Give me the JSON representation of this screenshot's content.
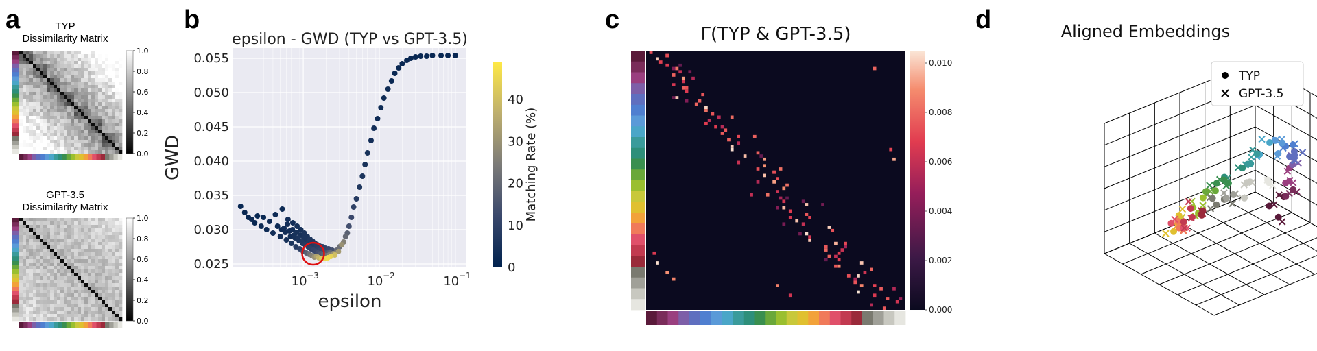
{
  "panels": {
    "a": {
      "letter": "a",
      "top": {
        "title_line1": "TYP",
        "title_line2": "Dissimilarity Matrix"
      },
      "bottom": {
        "title_line1": "GPT-3.5",
        "title_line2": "Dissimilarity Matrix"
      },
      "colorbar_ticks": [
        "1.0",
        "0.8",
        "0.6",
        "0.4",
        "0.2",
        "0.0"
      ]
    },
    "b": {
      "letter": "b"
    },
    "c": {
      "letter": "c"
    },
    "d": {
      "letter": "d"
    }
  },
  "category_colors": [
    "#5a1a3a",
    "#7a2c5a",
    "#9a3f7f",
    "#7d5fa8",
    "#5f6fbf",
    "#4f7fd0",
    "#5a9ad8",
    "#4aa6c8",
    "#3a9b9b",
    "#2e8f7a",
    "#3a8f4f",
    "#6aa83a",
    "#9abf2f",
    "#c8c83a",
    "#e0c030",
    "#f2a23a",
    "#f07a5a",
    "#e0506a",
    "#c23a50",
    "#9a2a3a",
    "#7a7a70",
    "#a0a098",
    "#c8c8c0",
    "#e6e6e0"
  ],
  "chart_data": [
    {
      "type": "heatmap",
      "panel": "a-top",
      "title": "TYP Dissimilarity Matrix",
      "colorbar_range": [
        0.0,
        1.0
      ],
      "colormap": "gray"
    },
    {
      "type": "heatmap",
      "panel": "a-bottom",
      "title": "GPT-3.5 Dissimilarity Matrix",
      "colorbar_range": [
        0.0,
        1.0
      ],
      "colormap": "gray"
    },
    {
      "type": "scatter",
      "panel": "b",
      "title": "epsilon - GWD (TYP vs GPT-3.5)",
      "xlabel": "epsilon",
      "ylabel": "GWD",
      "xscale": "log",
      "xlim": [
        0.00012,
        0.14
      ],
      "ylim": [
        0.0245,
        0.0565
      ],
      "xticks": [
        0.001,
        0.01,
        0.1
      ],
      "xtick_labels": [
        "10",
        "10",
        "10"
      ],
      "xtick_exponents": [
        "−3",
        "−2",
        "−1"
      ],
      "yticks": [
        0.025,
        0.03,
        0.035,
        0.04,
        0.045,
        0.05,
        0.055
      ],
      "ytick_labels": [
        "0.025",
        "0.030",
        "0.035",
        "0.040",
        "0.045",
        "0.050",
        "0.055"
      ],
      "colorbar_label": "Matching Rate (%)",
      "colorbar_range": [
        0,
        49
      ],
      "colorbar_ticks": [
        0,
        10,
        20,
        30,
        40
      ],
      "colorbar_tick_labels": [
        "0",
        "10",
        "20",
        "30",
        "40"
      ],
      "grid": true,
      "highlight": {
        "x": 0.00135,
        "y": 0.0265,
        "color": "#e01010"
      },
      "points": [
        [
          0.00015,
          0.0334,
          2
        ],
        [
          0.00017,
          0.0325,
          2
        ],
        [
          0.00019,
          0.0318,
          2
        ],
        [
          0.00021,
          0.0315,
          3
        ],
        [
          0.00023,
          0.031,
          2
        ],
        [
          0.00025,
          0.032,
          2
        ],
        [
          0.00028,
          0.0305,
          3
        ],
        [
          0.0003,
          0.0318,
          2
        ],
        [
          0.00033,
          0.03,
          3
        ],
        [
          0.00036,
          0.0312,
          3
        ],
        [
          0.0004,
          0.0295,
          4
        ],
        [
          0.00043,
          0.0322,
          3
        ],
        [
          0.00046,
          0.0305,
          3
        ],
        [
          0.0005,
          0.029,
          4
        ],
        [
          0.00053,
          0.033,
          3
        ],
        [
          0.00056,
          0.0302,
          4
        ],
        [
          0.0006,
          0.0285,
          5
        ],
        [
          0.00063,
          0.0315,
          4
        ],
        [
          0.00066,
          0.0298,
          4
        ],
        [
          0.0007,
          0.028,
          6
        ],
        [
          0.00073,
          0.031,
          4
        ],
        [
          0.00076,
          0.0292,
          5
        ],
        [
          0.0008,
          0.0275,
          8
        ],
        [
          0.00083,
          0.0305,
          5
        ],
        [
          0.00086,
          0.0288,
          6
        ],
        [
          0.0009,
          0.0272,
          10
        ],
        [
          0.00093,
          0.03,
          5
        ],
        [
          0.00096,
          0.0282,
          7
        ],
        [
          0.001,
          0.0268,
          14
        ],
        [
          0.00103,
          0.0295,
          6
        ],
        [
          0.00106,
          0.0278,
          8
        ],
        [
          0.0011,
          0.0266,
          18
        ],
        [
          0.00113,
          0.029,
          6
        ],
        [
          0.00116,
          0.0275,
          9
        ],
        [
          0.0012,
          0.0264,
          22
        ],
        [
          0.00123,
          0.0286,
          7
        ],
        [
          0.00126,
          0.0272,
          10
        ],
        [
          0.0013,
          0.0262,
          26
        ],
        [
          0.00133,
          0.0283,
          7
        ],
        [
          0.00136,
          0.027,
          11
        ],
        [
          0.0014,
          0.026,
          30
        ],
        [
          0.00143,
          0.028,
          8
        ],
        [
          0.00146,
          0.0268,
          12
        ],
        [
          0.0015,
          0.0261,
          34
        ],
        [
          0.00153,
          0.0278,
          9
        ],
        [
          0.00156,
          0.0266,
          14
        ],
        [
          0.0016,
          0.0259,
          38
        ],
        [
          0.00165,
          0.0276,
          9
        ],
        [
          0.0017,
          0.0265,
          16
        ],
        [
          0.00175,
          0.0258,
          42
        ],
        [
          0.0018,
          0.0275,
          10
        ],
        [
          0.00185,
          0.0264,
          18
        ],
        [
          0.0019,
          0.0258,
          45
        ],
        [
          0.00195,
          0.0273,
          11
        ],
        [
          0.002,
          0.0262,
          22
        ],
        [
          0.0021,
          0.0259,
          46
        ],
        [
          0.00215,
          0.0272,
          12
        ],
        [
          0.0022,
          0.0263,
          26
        ],
        [
          0.0023,
          0.0261,
          44
        ],
        [
          0.0024,
          0.027,
          14
        ],
        [
          0.0025,
          0.0265,
          30
        ],
        [
          0.0026,
          0.0263,
          40
        ],
        [
          0.00275,
          0.027,
          20
        ],
        [
          0.0029,
          0.0268,
          32
        ],
        [
          0.003,
          0.0275,
          22
        ],
        [
          0.0032,
          0.0278,
          30
        ],
        [
          0.0034,
          0.0282,
          26
        ],
        [
          0.0036,
          0.029,
          20
        ],
        [
          0.0038,
          0.0295,
          18
        ],
        [
          0.004,
          0.0305,
          14
        ],
        [
          0.0043,
          0.0318,
          12
        ],
        [
          0.0046,
          0.0333,
          10
        ],
        [
          0.005,
          0.0345,
          8
        ],
        [
          0.0055,
          0.0362,
          7
        ],
        [
          0.006,
          0.0378,
          6
        ],
        [
          0.0065,
          0.0395,
          5
        ],
        [
          0.007,
          0.0412,
          5
        ],
        [
          0.0078,
          0.043,
          4
        ],
        [
          0.0085,
          0.0448,
          4
        ],
        [
          0.0095,
          0.0462,
          3
        ],
        [
          0.0105,
          0.0478,
          3
        ],
        [
          0.0115,
          0.0492,
          3
        ],
        [
          0.013,
          0.0505,
          3
        ],
        [
          0.0145,
          0.0517,
          2
        ],
        [
          0.016,
          0.0528,
          2
        ],
        [
          0.018,
          0.0536,
          2
        ],
        [
          0.02,
          0.0542,
          2
        ],
        [
          0.023,
          0.0547,
          2
        ],
        [
          0.026,
          0.055,
          2
        ],
        [
          0.03,
          0.0552,
          2
        ],
        [
          0.035,
          0.0553,
          2
        ],
        [
          0.042,
          0.0553,
          2
        ],
        [
          0.05,
          0.0554,
          2
        ],
        [
          0.065,
          0.0554,
          2
        ],
        [
          0.08,
          0.0554,
          2
        ],
        [
          0.1,
          0.0554,
          2
        ],
        [
          0.00052,
          0.03,
          3
        ],
        [
          0.00058,
          0.0296,
          4
        ],
        [
          0.00068,
          0.029,
          4
        ],
        [
          0.00078,
          0.0288,
          5
        ],
        [
          0.00088,
          0.0284,
          6
        ],
        [
          0.00098,
          0.028,
          6
        ],
        [
          0.00108,
          0.0284,
          6
        ],
        [
          0.00118,
          0.0282,
          7
        ],
        [
          0.00128,
          0.028,
          7
        ],
        [
          0.00138,
          0.0276,
          8
        ],
        [
          0.00148,
          0.0274,
          9
        ],
        [
          0.00158,
          0.0272,
          10
        ],
        [
          0.00168,
          0.027,
          11
        ],
        [
          0.00178,
          0.027,
          12
        ],
        [
          0.00188,
          0.0268,
          13
        ],
        [
          0.00198,
          0.0267,
          14
        ],
        [
          0.00208,
          0.0266,
          16
        ],
        [
          0.00218,
          0.0266,
          18
        ],
        [
          0.00228,
          0.0266,
          20
        ],
        [
          0.00062,
          0.0308,
          4
        ],
        [
          0.00072,
          0.03,
          4
        ],
        [
          0.00082,
          0.0296,
          5
        ],
        [
          0.00092,
          0.0292,
          5
        ],
        [
          0.00102,
          0.0288,
          6
        ],
        [
          0.00112,
          0.0286,
          6
        ],
        [
          0.00122,
          0.0284,
          7
        ],
        [
          0.00132,
          0.0282,
          7
        ],
        [
          0.00142,
          0.0279,
          8
        ],
        [
          0.00152,
          0.0277,
          9
        ]
      ]
    },
    {
      "type": "heatmap",
      "panel": "c",
      "title": "Γ(TYP & GPT-3.5)",
      "colorbar_range": [
        0.0,
        0.0105
      ],
      "colorbar_ticks": [
        0.0,
        0.002,
        0.004,
        0.006,
        0.008,
        0.01
      ],
      "colorbar_tick_labels": [
        "0.000",
        "0.002",
        "0.004",
        "0.006",
        "0.008",
        "0.010"
      ],
      "colormap": "rocket"
    },
    {
      "type": "scatter",
      "panel": "d",
      "title": "Aligned Embeddings",
      "legend": [
        {
          "label": "TYP",
          "marker": "circle"
        },
        {
          "label": "GPT-3.5",
          "marker": "cross"
        }
      ],
      "legend_position": "top-right"
    }
  ]
}
